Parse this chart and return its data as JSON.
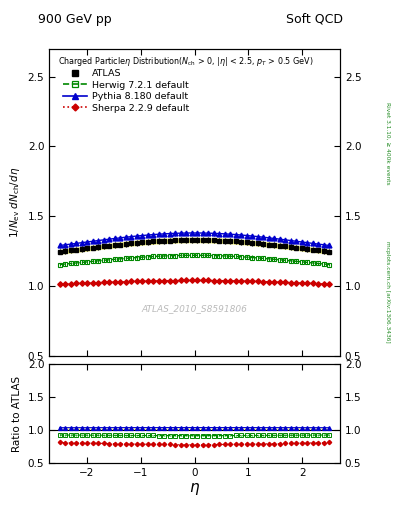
{
  "title_left": "900 GeV pp",
  "title_right": "Soft QCD",
  "plot_title": "Charged Particleη Distribution(N_{ch} > 0, |η| < 2.5, p_{T} > 0.5 GeV)",
  "ylabel_main": "1/N_{ev} dN_{ch}/dη",
  "ylabel_ratio": "Ratio to ATLAS",
  "xlabel": "η",
  "watermark": "ATLAS_2010_S8591806",
  "right_label_top": "Rivet 3.1.10, ≥ 400k events",
  "right_label_bot": "mcplots.cern.ch [arXiv:1306.3436]",
  "eta_range": [
    -2.5,
    2.5
  ],
  "n_points": 50,
  "ylim_main": [
    0.5,
    2.7
  ],
  "ylim_ratio": [
    0.5,
    2.0
  ],
  "yticks_main": [
    0.5,
    1.0,
    1.5,
    2.0,
    2.5
  ],
  "yticks_ratio": [
    0.5,
    1.0,
    1.5,
    2.0
  ],
  "xticks": [
    -2,
    -1,
    0,
    1,
    2
  ],
  "atlas_color": "#000000",
  "herwig_color": "#008800",
  "pythia_color": "#0000cc",
  "sherpa_color": "#cc0000",
  "band_yellow": "#ffff88",
  "band_green": "#aaffaa"
}
